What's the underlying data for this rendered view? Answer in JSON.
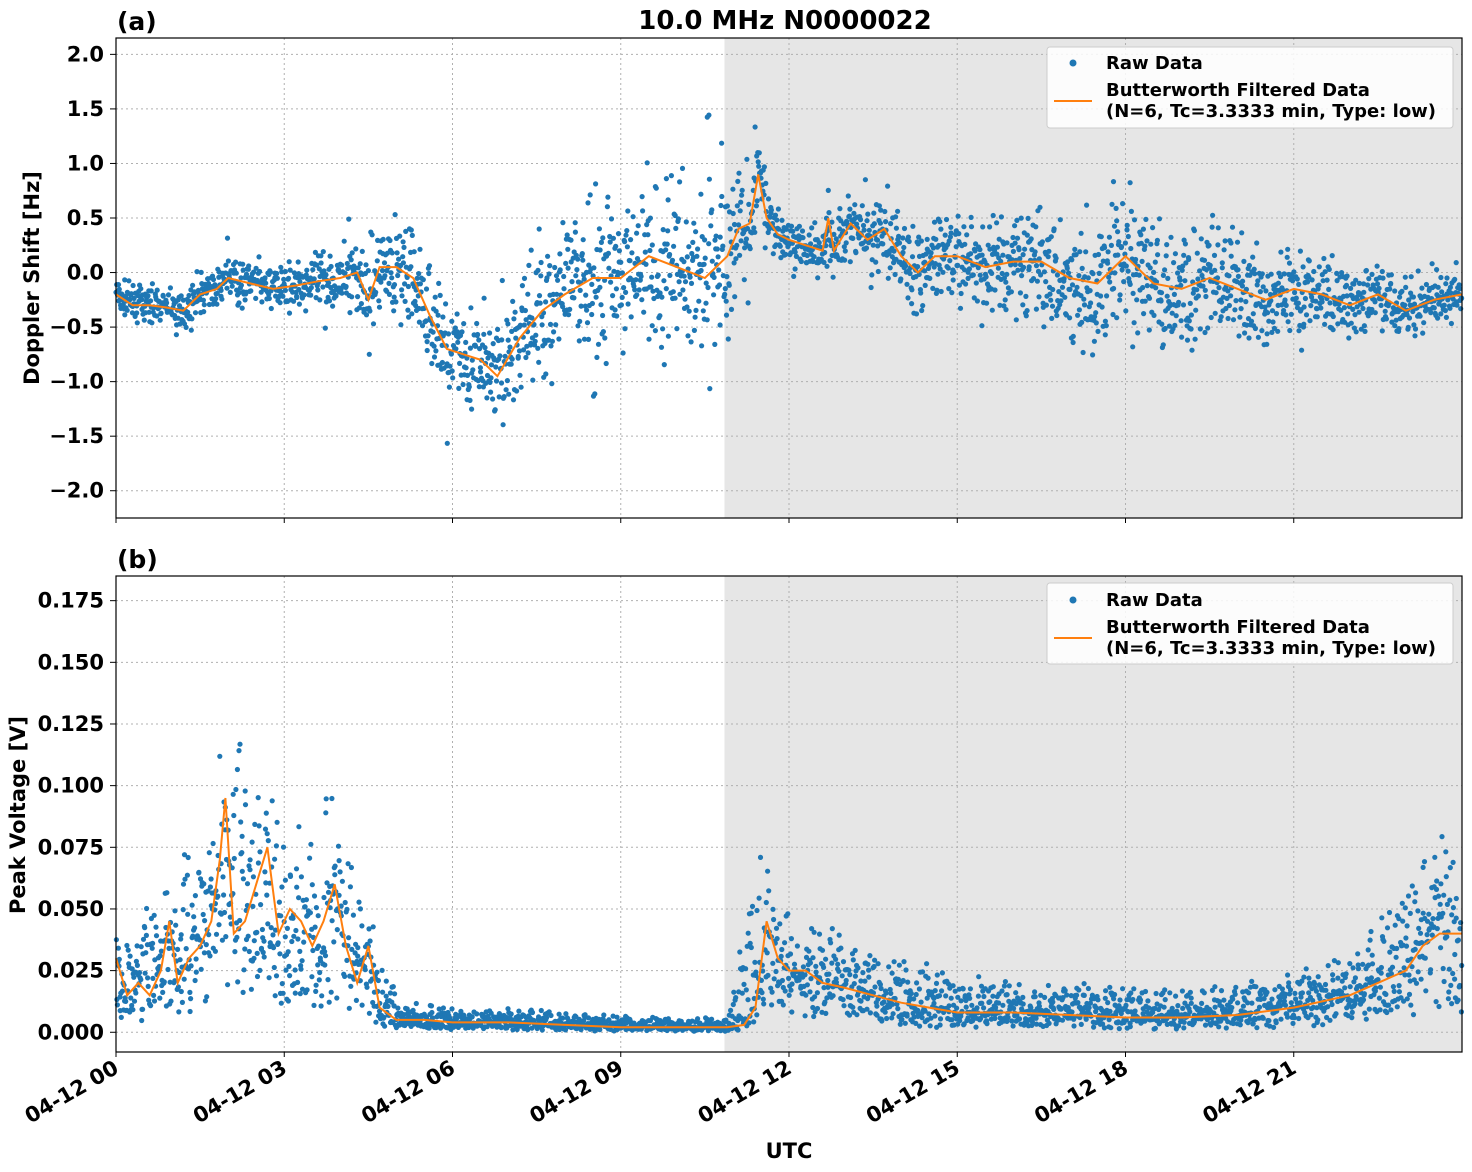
{
  "title": "10.0 MHz N0000022",
  "xlabel": "UTC",
  "colors": {
    "raw": "#1f77b4",
    "filtered": "#ff7f0e",
    "shade": "#e6e6e6",
    "grid": "#b0b0b0"
  },
  "legend": {
    "raw": "Raw Data",
    "filtered_line1": "Butterworth Filtered Data",
    "filtered_line2": "(N=6, Tc=3.3333 min, Type: low)",
    "placement": "top-right"
  },
  "x_ticks": [
    "04-12 00",
    "04-12 03",
    "04-12 06",
    "04-12 09",
    "04-12 12",
    "04-12 15",
    "04-12 18",
    "04-12 21"
  ],
  "chart_data": [
    {
      "type": "scatter",
      "panel": "(a)",
      "ylabel": "Doppler Shift [Hz]",
      "xlim_hours": [
        0,
        24
      ],
      "ylim": [
        -2.25,
        2.15
      ],
      "yticks": [
        "2.0",
        "1.5",
        "1.0",
        "0.5",
        "0.0",
        "−0.5",
        "−1.0",
        "−1.5",
        "−2.0"
      ],
      "ytick_values": [
        2.0,
        1.5,
        1.0,
        0.5,
        0.0,
        -0.5,
        -1.0,
        -1.5,
        -2.0
      ],
      "shaded_x_hours": [
        10.85,
        24
      ],
      "grid": true,
      "series": [
        {
          "name": "Butterworth Filtered Data",
          "x_hours": [
            0,
            0.3,
            0.6,
            0.9,
            1.2,
            1.5,
            1.8,
            2.0,
            2.4,
            2.8,
            3.2,
            3.6,
            4.0,
            4.3,
            4.5,
            4.7,
            5.0,
            5.3,
            5.6,
            5.9,
            6.2,
            6.5,
            6.8,
            7.2,
            7.6,
            8.0,
            8.5,
            9.0,
            9.5,
            10.0,
            10.5,
            10.9,
            11.1,
            11.3,
            11.45,
            11.6,
            11.8,
            12.0,
            12.3,
            12.6,
            12.7,
            12.8,
            13.1,
            13.4,
            13.7,
            14.0,
            14.3,
            14.6,
            15.0,
            15.5,
            16.0,
            16.5,
            17.0,
            17.5,
            18.0,
            18.5,
            19.0,
            19.5,
            20.0,
            20.5,
            21.0,
            21.5,
            22.0,
            22.5,
            23.0,
            23.5,
            24.0
          ],
          "values": [
            -0.2,
            -0.3,
            -0.3,
            -0.32,
            -0.35,
            -0.2,
            -0.15,
            -0.05,
            -0.1,
            -0.15,
            -0.12,
            -0.08,
            -0.05,
            0.0,
            -0.25,
            0.05,
            0.05,
            -0.05,
            -0.4,
            -0.7,
            -0.75,
            -0.8,
            -0.95,
            -0.6,
            -0.35,
            -0.2,
            -0.05,
            -0.05,
            0.15,
            0.05,
            -0.05,
            0.15,
            0.4,
            0.45,
            0.9,
            0.5,
            0.35,
            0.3,
            0.25,
            0.2,
            0.5,
            0.2,
            0.45,
            0.3,
            0.4,
            0.15,
            0.0,
            0.15,
            0.15,
            0.05,
            0.1,
            0.1,
            -0.05,
            -0.1,
            0.15,
            -0.1,
            -0.15,
            -0.05,
            -0.15,
            -0.25,
            -0.15,
            -0.2,
            -0.3,
            -0.2,
            -0.35,
            -0.25,
            -0.2
          ]
        },
        {
          "name": "Raw Data",
          "envelope_x_hours": [
            0,
            1.0,
            2.0,
            3.0,
            4.0,
            4.5,
            5.0,
            6.0,
            6.5,
            7.5,
            8.5,
            9.5,
            10.5,
            11.0,
            11.5,
            12.0,
            13.0,
            14.0,
            15.0,
            16.0,
            17.0,
            18.0,
            19.0,
            20.0,
            21.0,
            22.0,
            23.0,
            24.0
          ],
          "envelope_spread": [
            0.15,
            0.15,
            0.2,
            0.2,
            0.25,
            0.4,
            0.45,
            0.45,
            0.45,
            0.6,
            0.75,
            0.8,
            0.8,
            0.75,
            0.35,
            0.2,
            0.3,
            0.35,
            0.4,
            0.45,
            0.55,
            0.65,
            0.55,
            0.45,
            0.35,
            0.3,
            0.25,
            0.2
          ]
        }
      ]
    },
    {
      "type": "scatter",
      "panel": "(b)",
      "ylabel": "Peak Voltage [V]",
      "xlim_hours": [
        0,
        24
      ],
      "ylim": [
        -0.008,
        0.185
      ],
      "yticks": [
        "0.175",
        "0.150",
        "0.125",
        "0.100",
        "0.075",
        "0.050",
        "0.025",
        "0.000"
      ],
      "ytick_values": [
        0.175,
        0.15,
        0.125,
        0.1,
        0.075,
        0.05,
        0.025,
        0.0
      ],
      "shaded_x_hours": [
        10.85,
        24
      ],
      "grid": true,
      "series": [
        {
          "name": "Butterworth Filtered Data",
          "x_hours": [
            0,
            0.2,
            0.4,
            0.6,
            0.8,
            0.95,
            1.1,
            1.3,
            1.5,
            1.7,
            1.85,
            1.95,
            2.1,
            2.3,
            2.5,
            2.7,
            2.9,
            3.1,
            3.3,
            3.5,
            3.7,
            3.9,
            4.1,
            4.3,
            4.5,
            4.7,
            5.0,
            5.5,
            6.0,
            7.0,
            8.0,
            9.0,
            10.0,
            10.9,
            11.2,
            11.4,
            11.6,
            11.8,
            12.0,
            12.3,
            12.6,
            13.0,
            13.5,
            14.0,
            14.5,
            15.0,
            16.0,
            17.0,
            18.0,
            19.0,
            20.0,
            21.0,
            22.0,
            22.5,
            23.0,
            23.3,
            23.6,
            24.0
          ],
          "values": [
            0.03,
            0.015,
            0.02,
            0.015,
            0.025,
            0.045,
            0.02,
            0.03,
            0.035,
            0.045,
            0.07,
            0.095,
            0.04,
            0.045,
            0.06,
            0.075,
            0.04,
            0.05,
            0.045,
            0.035,
            0.045,
            0.06,
            0.035,
            0.02,
            0.035,
            0.01,
            0.005,
            0.005,
            0.004,
            0.004,
            0.003,
            0.002,
            0.002,
            0.002,
            0.003,
            0.01,
            0.045,
            0.03,
            0.025,
            0.025,
            0.02,
            0.018,
            0.015,
            0.012,
            0.01,
            0.008,
            0.008,
            0.007,
            0.006,
            0.006,
            0.007,
            0.01,
            0.015,
            0.02,
            0.025,
            0.035,
            0.04,
            0.04
          ]
        },
        {
          "name": "Raw Data",
          "envelope_x_hours": [
            0,
            1.0,
            2.0,
            2.6,
            3.0,
            3.5,
            4.0,
            4.5,
            5.0,
            6.0,
            7.0,
            8.0,
            9.0,
            10.0,
            10.9,
            11.4,
            11.6,
            12.0,
            13.0,
            14.0,
            15.0,
            16.0,
            17.0,
            18.0,
            19.0,
            20.0,
            21.0,
            22.0,
            23.0,
            23.5,
            24.0
          ],
          "envelope_upper": [
            0.04,
            0.06,
            0.12,
            0.1,
            0.09,
            0.09,
            0.1,
            0.05,
            0.015,
            0.01,
            0.01,
            0.008,
            0.007,
            0.006,
            0.006,
            0.07,
            0.07,
            0.05,
            0.045,
            0.03,
            0.025,
            0.02,
            0.02,
            0.02,
            0.02,
            0.02,
            0.025,
            0.035,
            0.06,
            0.09,
            0.07
          ]
        }
      ]
    }
  ],
  "panels": [
    {
      "label": "(a)",
      "ylabel": "Doppler Shift [Hz]",
      "ticks": [
        "2.0",
        "1.5",
        "1.0",
        "0.5",
        "0.0",
        "−0.5",
        "−1.0",
        "−1.5",
        "−2.0"
      ]
    },
    {
      "label": "(b)",
      "ylabel": "Peak Voltage [V]",
      "ticks": [
        "0.175",
        "0.150",
        "0.125",
        "0.100",
        "0.075",
        "0.050",
        "0.025",
        "0.000"
      ]
    }
  ]
}
